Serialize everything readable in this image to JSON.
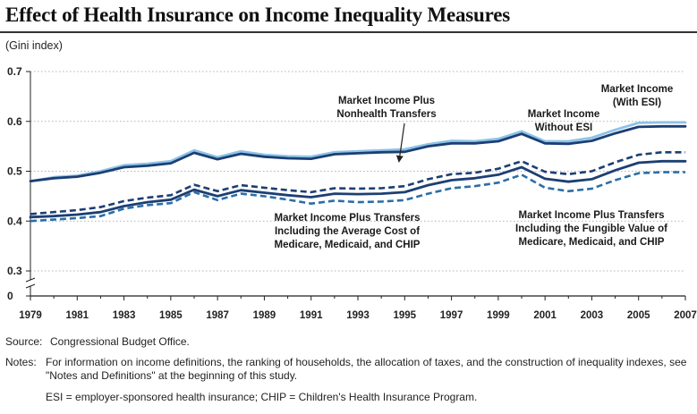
{
  "chart_data": {
    "type": "line",
    "title": "Effect of Health Insurance on Income Inequality Measures",
    "ylabel": "(Gini index)",
    "xlabel": "",
    "xlim": [
      1979,
      2007
    ],
    "ylim": [
      0,
      0.7
    ],
    "axis_break": [
      0.0,
      0.3
    ],
    "yticks": [
      0,
      0.3,
      0.4,
      0.5,
      0.6,
      0.7
    ],
    "ytick_labels": [
      "0",
      "0.3",
      "0.4",
      "0.5",
      "0.6",
      "0.7"
    ],
    "xticks": [
      1979,
      1981,
      1983,
      1985,
      1987,
      1989,
      1991,
      1993,
      1995,
      1997,
      1999,
      2001,
      2003,
      2005,
      2007
    ],
    "xtick_labels": [
      "1979",
      "1981",
      "1983",
      "1985",
      "1987",
      "1989",
      "1991",
      "1993",
      "1995",
      "1997",
      "1999",
      "2001",
      "2003",
      "2005",
      "2007"
    ],
    "x": [
      1979,
      1980,
      1981,
      1982,
      1983,
      1984,
      1985,
      1986,
      1987,
      1988,
      1989,
      1990,
      1991,
      1992,
      1993,
      1994,
      1995,
      1996,
      1997,
      1998,
      1999,
      2000,
      2001,
      2002,
      2003,
      2004,
      2005,
      2006,
      2007
    ],
    "series": [
      {
        "name": "Market Income (With ESI)",
        "color": "#8cc3e8",
        "style": "solid",
        "values": [
          0.48,
          0.488,
          0.491,
          0.5,
          0.512,
          0.515,
          0.52,
          0.542,
          0.528,
          0.54,
          0.533,
          0.53,
          0.529,
          0.538,
          0.54,
          0.542,
          0.544,
          0.554,
          0.561,
          0.56,
          0.565,
          0.58,
          0.56,
          0.56,
          0.567,
          0.583,
          0.597,
          0.598,
          0.598
        ]
      },
      {
        "name": "Market Income Plus Nonhealth Transfers",
        "color": "#1c3f73",
        "style": "solid",
        "values": [
          0.48,
          0.486,
          0.489,
          0.497,
          0.508,
          0.511,
          0.516,
          0.537,
          0.524,
          0.535,
          0.529,
          0.526,
          0.525,
          0.534,
          0.536,
          0.538,
          0.539,
          0.55,
          0.556,
          0.556,
          0.56,
          0.575,
          0.556,
          0.555,
          0.561,
          0.576,
          0.589,
          0.59,
          0.59
        ]
      },
      {
        "name": "Market Income Without ESI",
        "color": "#1c3f73",
        "style": "dashed",
        "values": [
          0.414,
          0.418,
          0.422,
          0.428,
          0.44,
          0.447,
          0.452,
          0.473,
          0.46,
          0.472,
          0.467,
          0.462,
          0.458,
          0.466,
          0.465,
          0.466,
          0.47,
          0.484,
          0.494,
          0.497,
          0.505,
          0.52,
          0.499,
          0.494,
          0.5,
          0.518,
          0.533,
          0.538,
          0.538
        ]
      },
      {
        "name": "Market Income Plus Transfers Including the Fungible Value of Medicare, Medicaid, and CHIP",
        "color": "#1c3f73",
        "style": "solid",
        "values": [
          0.408,
          0.41,
          0.413,
          0.418,
          0.43,
          0.438,
          0.443,
          0.463,
          0.45,
          0.462,
          0.457,
          0.452,
          0.448,
          0.455,
          0.454,
          0.455,
          0.458,
          0.472,
          0.482,
          0.486,
          0.493,
          0.508,
          0.485,
          0.479,
          0.484,
          0.502,
          0.517,
          0.52,
          0.52
        ]
      },
      {
        "name": "Market Income Plus Transfers Including the Average Cost of Medicare, Medicaid, and CHIP",
        "color": "#2b6ea6",
        "style": "dashed",
        "values": [
          0.4,
          0.403,
          0.406,
          0.41,
          0.425,
          0.432,
          0.436,
          0.458,
          0.442,
          0.455,
          0.45,
          0.443,
          0.435,
          0.441,
          0.438,
          0.439,
          0.442,
          0.455,
          0.466,
          0.47,
          0.477,
          0.493,
          0.467,
          0.46,
          0.465,
          0.482,
          0.496,
          0.498,
          0.498
        ]
      }
    ],
    "annotations": {
      "with_esi": [
        "Market Income",
        "(With ESI)"
      ],
      "without_esi": [
        "Market Income",
        "Without ESI"
      ],
      "nonhealth": [
        "Market Income Plus",
        "Nonhealth Transfers"
      ],
      "average_cost": [
        "Market Income Plus Transfers",
        "Including the Average Cost of",
        "Medicare, Medicaid, and CHIP"
      ],
      "fungible": [
        "Market Income Plus Transfers",
        "Including the Fungible Value of",
        "Medicare, Medicaid, and CHIP"
      ]
    }
  },
  "footnotes": {
    "source_label": "Source:",
    "source_text": "Congressional Budget Office.",
    "notes_label": "Notes:",
    "notes_text": "For information on income definitions, the ranking of households, the allocation of taxes, and the construction of inequality indexes, see \"Notes and Definitions\" at the beginning of this study.",
    "esi_definition": "ESI = employer-sponsored health insurance; CHIP = Children's Health Insurance Program."
  }
}
